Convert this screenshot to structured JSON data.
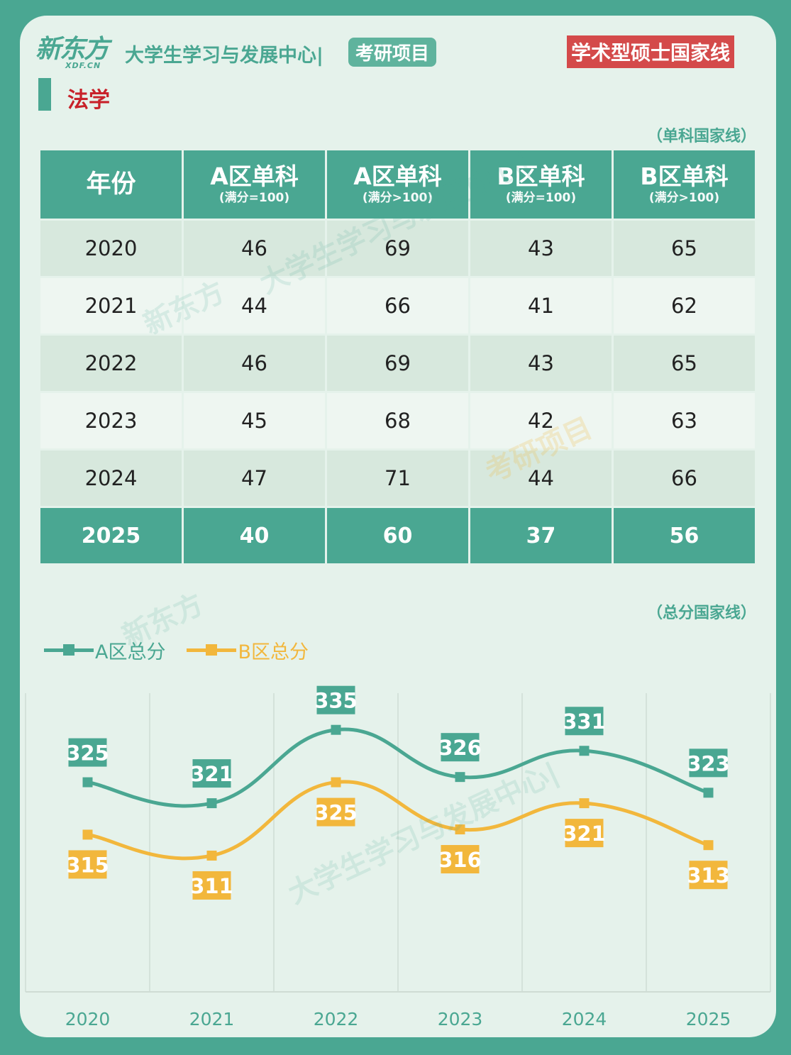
{
  "header": {
    "logo_main": "新东方",
    "logo_sub": "XDF.CN",
    "center_name": "大学生学习与发展中心|",
    "project_badge": "考研项目",
    "type_badge": "学术型硕士国家线"
  },
  "subject": "法学",
  "table": {
    "note": "（单科国家线）",
    "headers": [
      {
        "title": "年份",
        "sub": ""
      },
      {
        "title": "A区单科",
        "sub": "(满分=100)"
      },
      {
        "title": "A区单科",
        "sub": "(满分>100)"
      },
      {
        "title": "B区单科",
        "sub": "(满分=100)"
      },
      {
        "title": "B区单科",
        "sub": "(满分>100)"
      }
    ],
    "rows": [
      [
        "2020",
        "46",
        "69",
        "43",
        "65"
      ],
      [
        "2021",
        "44",
        "66",
        "41",
        "62"
      ],
      [
        "2022",
        "46",
        "69",
        "43",
        "65"
      ],
      [
        "2023",
        "45",
        "68",
        "42",
        "63"
      ],
      [
        "2024",
        "47",
        "71",
        "44",
        "66"
      ],
      [
        "2025",
        "40",
        "60",
        "37",
        "56"
      ]
    ]
  },
  "chart_note": "（总分国家线）",
  "chart_data": {
    "type": "line",
    "categories": [
      "2020",
      "2021",
      "2022",
      "2023",
      "2024",
      "2025"
    ],
    "series": [
      {
        "name": "A区总分",
        "values": [
          325,
          321,
          335,
          326,
          331,
          323
        ],
        "color": "#4aa792"
      },
      {
        "name": "B区总分",
        "values": [
          315,
          311,
          325,
          316,
          321,
          313
        ],
        "color": "#f2b73c"
      }
    ],
    "ylim": [
      285,
      342
    ],
    "grid": "vertical",
    "legend": "top-left",
    "smooth": true
  },
  "watermarks": [
    "新东方",
    "大学生学习与发展中心|",
    "考研项目"
  ],
  "colors": {
    "primary": "#4aa792",
    "secondary": "#f2b73c",
    "accent_red": "#d44a4a"
  }
}
